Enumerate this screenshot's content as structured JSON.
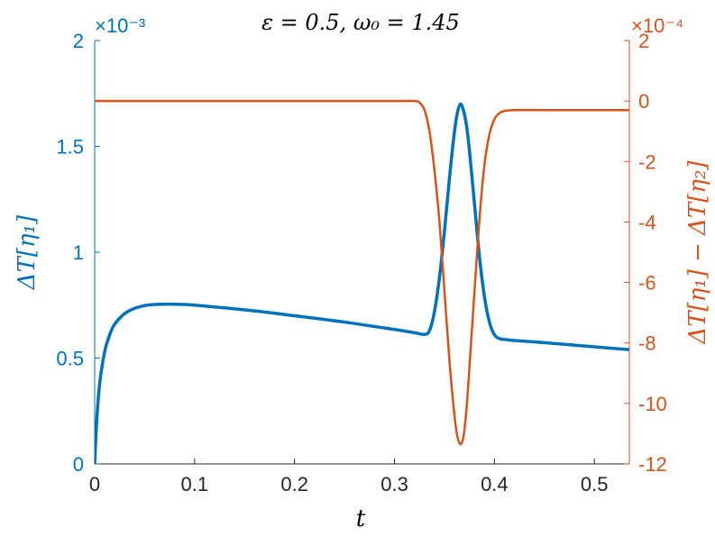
{
  "chart_data": {
    "type": "line",
    "title": "ε = 0.5, ω₀ = 1.45",
    "xlabel": "t",
    "xlim": [
      0,
      0.535
    ],
    "x_ticks": [
      "0",
      "0.1",
      "0.2",
      "0.3",
      "0.4",
      "0.5"
    ],
    "x_tick_values": [
      0,
      0.1,
      0.2,
      0.3,
      0.4,
      0.5
    ],
    "grid": false,
    "left_axis": {
      "label": "ΔT[η₁]",
      "exponent_label": "×10⁻³",
      "ylim": [
        0,
        2
      ],
      "ticks": [
        "0",
        "0.5",
        "1",
        "1.5",
        "2"
      ],
      "tick_values": [
        0,
        0.5,
        1,
        1.5,
        2
      ],
      "color": "#0072BD"
    },
    "right_axis": {
      "label": "ΔT[η₁] − ΔT[η₂]",
      "exponent_label": "×10⁻⁴",
      "ylim": [
        -12,
        2
      ],
      "ticks": [
        "2",
        "0",
        "-2",
        "-4",
        "-6",
        "-8",
        "-10",
        "-12"
      ],
      "tick_values": [
        2,
        0,
        -2,
        -4,
        -6,
        -8,
        -10,
        -12
      ],
      "color": "#D95319"
    },
    "series": [
      {
        "axis": "left",
        "color": "#0072BD",
        "x": [
          0,
          0.002,
          0.005,
          0.01,
          0.015,
          0.02,
          0.03,
          0.04,
          0.05,
          0.06,
          0.075,
          0.09,
          0.1,
          0.15,
          0.2,
          0.25,
          0.3,
          0.32,
          0.33,
          0.335,
          0.34,
          0.345,
          0.35,
          0.355,
          0.36,
          0.363,
          0.366,
          0.369,
          0.372,
          0.375,
          0.38,
          0.385,
          0.39,
          0.395,
          0.4,
          0.405,
          0.41,
          0.42,
          0.45,
          0.5,
          0.535
        ],
        "y": [
          0,
          0.2,
          0.38,
          0.53,
          0.61,
          0.66,
          0.71,
          0.735,
          0.748,
          0.753,
          0.755,
          0.753,
          0.75,
          0.728,
          0.7,
          0.67,
          0.635,
          0.62,
          0.612,
          0.63,
          0.72,
          0.88,
          1.1,
          1.35,
          1.57,
          1.66,
          1.7,
          1.67,
          1.6,
          1.48,
          1.23,
          0.98,
          0.79,
          0.67,
          0.61,
          0.592,
          0.588,
          0.583,
          0.573,
          0.553,
          0.54
        ]
      },
      {
        "axis": "right",
        "color": "#D95319",
        "x": [
          0,
          0.1,
          0.2,
          0.3,
          0.32,
          0.325,
          0.33,
          0.335,
          0.34,
          0.345,
          0.35,
          0.355,
          0.36,
          0.363,
          0.366,
          0.369,
          0.372,
          0.375,
          0.38,
          0.385,
          0.39,
          0.395,
          0.4,
          0.405,
          0.41,
          0.42,
          0.45,
          0.5,
          0.535
        ],
        "y": [
          0,
          0,
          0,
          0,
          0,
          -0.05,
          -0.3,
          -1.0,
          -2.3,
          -4.0,
          -6.3,
          -8.6,
          -10.4,
          -11.1,
          -11.35,
          -11.1,
          -10.2,
          -8.8,
          -6.3,
          -3.9,
          -2.1,
          -1.1,
          -0.6,
          -0.4,
          -0.33,
          -0.3,
          -0.3,
          -0.3,
          -0.3
        ]
      }
    ]
  }
}
